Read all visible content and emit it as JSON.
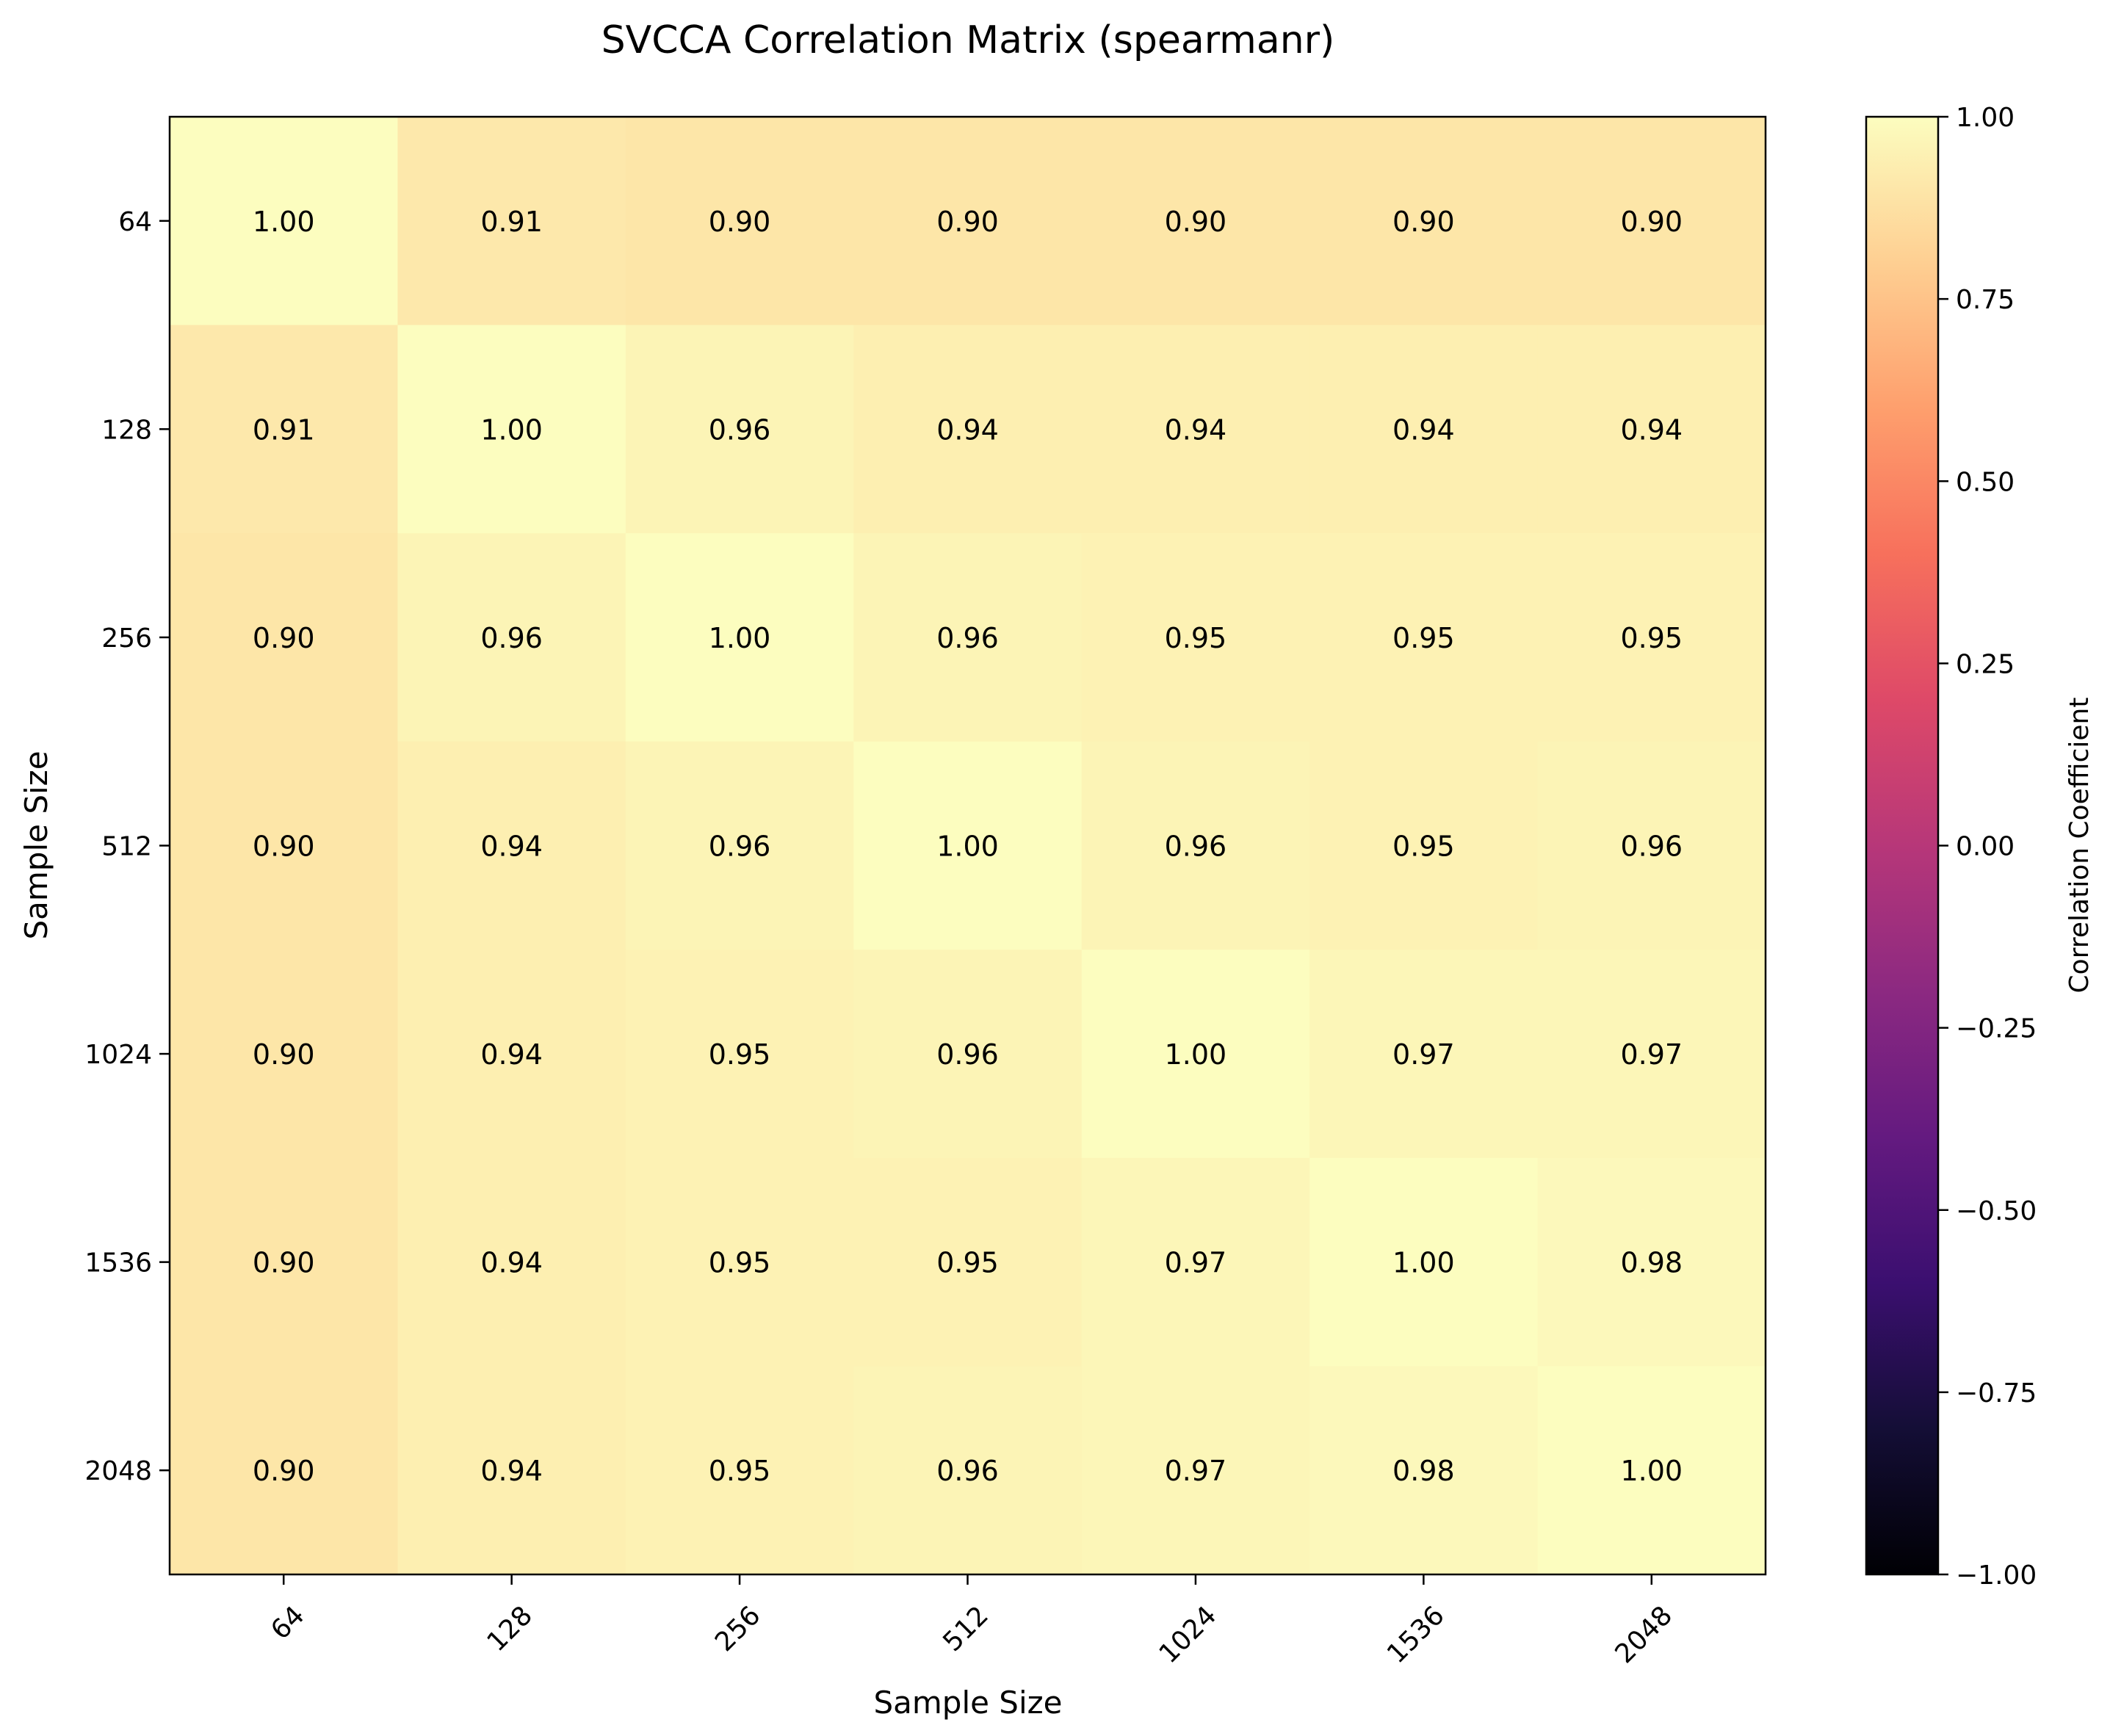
{
  "chart_data": {
    "type": "heatmap",
    "title": "SVCCA Correlation Matrix (spearmanr)",
    "xlabel": "Sample Size",
    "ylabel": "Sample Size",
    "x_categories": [
      "64",
      "128",
      "256",
      "512",
      "1024",
      "1536",
      "2048"
    ],
    "y_categories": [
      "64",
      "128",
      "256",
      "512",
      "1024",
      "1536",
      "2048"
    ],
    "values": [
      [
        1.0,
        0.91,
        0.9,
        0.9,
        0.9,
        0.9,
        0.9
      ],
      [
        0.91,
        1.0,
        0.96,
        0.94,
        0.94,
        0.94,
        0.94
      ],
      [
        0.9,
        0.96,
        1.0,
        0.96,
        0.95,
        0.95,
        0.95
      ],
      [
        0.9,
        0.94,
        0.96,
        1.0,
        0.96,
        0.95,
        0.96
      ],
      [
        0.9,
        0.94,
        0.95,
        0.96,
        1.0,
        0.97,
        0.97
      ],
      [
        0.9,
        0.94,
        0.95,
        0.95,
        0.97,
        1.0,
        0.98
      ],
      [
        0.9,
        0.94,
        0.95,
        0.96,
        0.97,
        0.98,
        1.0
      ]
    ],
    "value_labels": [
      [
        "1.00",
        "0.91",
        "0.90",
        "0.90",
        "0.90",
        "0.90",
        "0.90"
      ],
      [
        "0.91",
        "1.00",
        "0.96",
        "0.94",
        "0.94",
        "0.94",
        "0.94"
      ],
      [
        "0.90",
        "0.96",
        "1.00",
        "0.96",
        "0.95",
        "0.95",
        "0.95"
      ],
      [
        "0.90",
        "0.94",
        "0.96",
        "1.00",
        "0.96",
        "0.95",
        "0.96"
      ],
      [
        "0.90",
        "0.94",
        "0.95",
        "0.96",
        "1.00",
        "0.97",
        "0.97"
      ],
      [
        "0.90",
        "0.94",
        "0.95",
        "0.95",
        "0.97",
        "1.00",
        "0.98"
      ],
      [
        "0.90",
        "0.94",
        "0.95",
        "0.96",
        "0.97",
        "0.98",
        "1.00"
      ]
    ],
    "colorbar": {
      "label": "Correlation Coefficient",
      "range": [
        -1.0,
        1.0
      ],
      "ticks": [
        1.0,
        0.75,
        0.5,
        0.25,
        0.0,
        -0.25,
        -0.5,
        -0.75,
        -1.0
      ],
      "tick_labels": [
        "1.00",
        "0.75",
        "0.50",
        "0.25",
        "0.00",
        "−0.25",
        "−0.50",
        "−0.75",
        "−1.00"
      ],
      "colormap": "magma"
    },
    "grid": false
  }
}
